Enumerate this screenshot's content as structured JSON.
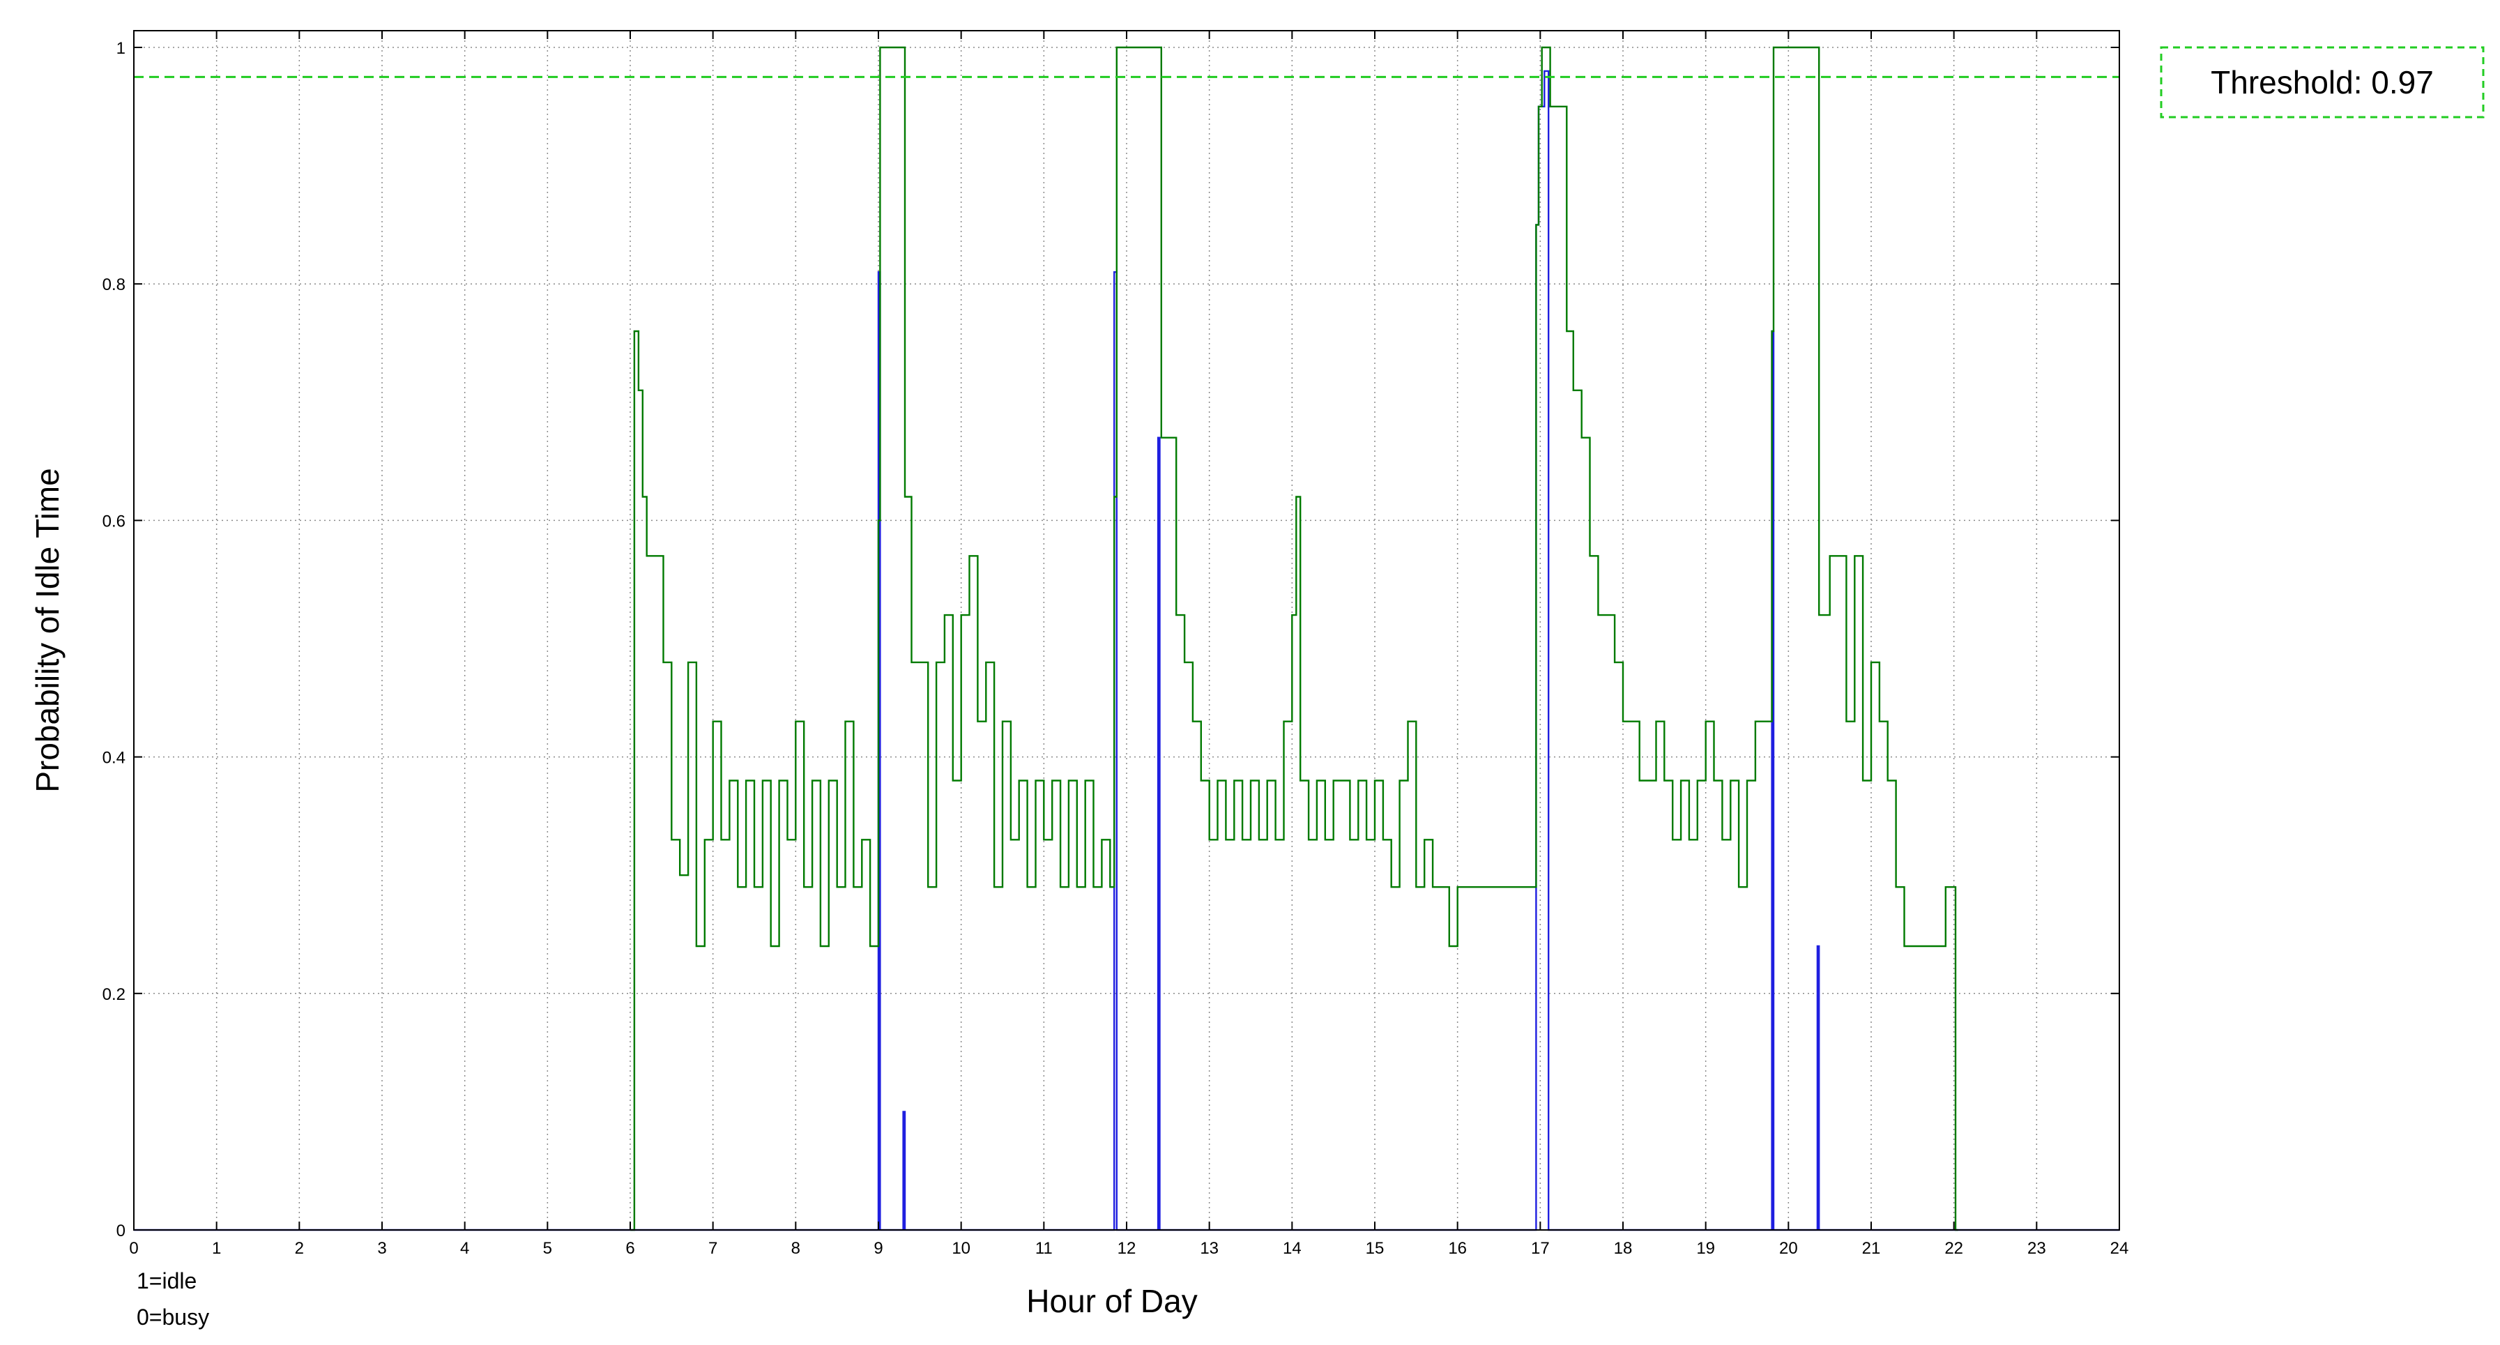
{
  "chart_data": {
    "type": "line",
    "title": "",
    "xlabel": "Hour of Day",
    "ylabel": "Probability of Idle Time",
    "xlim": [
      0,
      24
    ],
    "ylim": [
      0,
      1
    ],
    "x_ticks": [
      "0",
      "1",
      "2",
      "3",
      "4",
      "5",
      "6",
      "7",
      "8",
      "9",
      "10",
      "11",
      "12",
      "13",
      "14",
      "15",
      "16",
      "17",
      "18",
      "19",
      "20",
      "21",
      "22",
      "23",
      "24"
    ],
    "y_ticks": [
      "0",
      "0.2",
      "0.4",
      "0.6",
      "0.8",
      "1"
    ],
    "grid": true,
    "notes": [
      "1=idle",
      "0=busy"
    ],
    "threshold": {
      "label": "Threshold: 0.97",
      "value": 0.975,
      "color": "#22cc22"
    },
    "series": [
      {
        "color": "#1f1fe0",
        "style": "step",
        "points": [
          [
            0,
            0
          ],
          [
            6,
            0
          ],
          [
            9.0,
            0
          ],
          [
            9.0,
            0.81
          ],
          [
            9.02,
            0.81
          ],
          [
            9.02,
            0
          ],
          [
            9.3,
            0
          ],
          [
            9.3,
            0.1
          ],
          [
            9.32,
            0.1
          ],
          [
            9.32,
            0
          ],
          [
            11.85,
            0
          ],
          [
            11.85,
            0.81
          ],
          [
            11.88,
            0.81
          ],
          [
            11.88,
            0
          ],
          [
            12.38,
            0
          ],
          [
            12.38,
            0.67
          ],
          [
            12.4,
            0.67
          ],
          [
            12.4,
            0
          ],
          [
            16.95,
            0
          ],
          [
            16.95,
            0.85
          ],
          [
            16.98,
            0.85
          ],
          [
            16.98,
            0.95
          ],
          [
            17.05,
            0.95
          ],
          [
            17.05,
            0.98
          ],
          [
            17.1,
            0.98
          ],
          [
            17.1,
            0
          ],
          [
            19.8,
            0
          ],
          [
            19.8,
            0.76
          ],
          [
            19.82,
            0.76
          ],
          [
            19.82,
            0
          ],
          [
            20.35,
            0
          ],
          [
            20.35,
            0.24
          ],
          [
            20.37,
            0.24
          ],
          [
            20.37,
            0
          ],
          [
            24,
            0
          ]
        ]
      },
      {
        "color": "#007a00",
        "style": "step",
        "points": [
          [
            6.0,
            0
          ],
          [
            6.05,
            0.76
          ],
          [
            6.1,
            0.71
          ],
          [
            6.15,
            0.62
          ],
          [
            6.2,
            0.57
          ],
          [
            6.3,
            0.57
          ],
          [
            6.4,
            0.48
          ],
          [
            6.5,
            0.33
          ],
          [
            6.6,
            0.3
          ],
          [
            6.7,
            0.48
          ],
          [
            6.8,
            0.24
          ],
          [
            6.9,
            0.33
          ],
          [
            7.0,
            0.43
          ],
          [
            7.1,
            0.33
          ],
          [
            7.2,
            0.38
          ],
          [
            7.3,
            0.29
          ],
          [
            7.4,
            0.38
          ],
          [
            7.5,
            0.29
          ],
          [
            7.6,
            0.38
          ],
          [
            7.7,
            0.24
          ],
          [
            7.8,
            0.38
          ],
          [
            7.9,
            0.33
          ],
          [
            8.0,
            0.43
          ],
          [
            8.1,
            0.29
          ],
          [
            8.2,
            0.38
          ],
          [
            8.3,
            0.24
          ],
          [
            8.4,
            0.38
          ],
          [
            8.5,
            0.29
          ],
          [
            8.6,
            0.43
          ],
          [
            8.7,
            0.29
          ],
          [
            8.8,
            0.33
          ],
          [
            8.9,
            0.24
          ],
          [
            9.0,
            0.6
          ],
          [
            9.02,
            1.0
          ],
          [
            9.3,
            1.0
          ],
          [
            9.32,
            0.62
          ],
          [
            9.4,
            0.48
          ],
          [
            9.5,
            0.48
          ],
          [
            9.6,
            0.29
          ],
          [
            9.7,
            0.48
          ],
          [
            9.8,
            0.52
          ],
          [
            9.9,
            0.38
          ],
          [
            10.0,
            0.52
          ],
          [
            10.1,
            0.57
          ],
          [
            10.2,
            0.43
          ],
          [
            10.3,
            0.48
          ],
          [
            10.4,
            0.29
          ],
          [
            10.5,
            0.43
          ],
          [
            10.6,
            0.33
          ],
          [
            10.7,
            0.38
          ],
          [
            10.8,
            0.29
          ],
          [
            10.9,
            0.38
          ],
          [
            11.0,
            0.33
          ],
          [
            11.1,
            0.38
          ],
          [
            11.2,
            0.29
          ],
          [
            11.3,
            0.38
          ],
          [
            11.4,
            0.29
          ],
          [
            11.5,
            0.38
          ],
          [
            11.6,
            0.29
          ],
          [
            11.7,
            0.33
          ],
          [
            11.8,
            0.29
          ],
          [
            11.85,
            0.62
          ],
          [
            11.88,
            1.0
          ],
          [
            12.4,
            1.0
          ],
          [
            12.42,
            0.67
          ],
          [
            12.5,
            0.67
          ],
          [
            12.6,
            0.52
          ],
          [
            12.7,
            0.48
          ],
          [
            12.8,
            0.43
          ],
          [
            12.9,
            0.38
          ],
          [
            13.0,
            0.33
          ],
          [
            13.1,
            0.38
          ],
          [
            13.2,
            0.33
          ],
          [
            13.3,
            0.38
          ],
          [
            13.4,
            0.33
          ],
          [
            13.5,
            0.38
          ],
          [
            13.6,
            0.33
          ],
          [
            13.7,
            0.38
          ],
          [
            13.8,
            0.33
          ],
          [
            13.9,
            0.43
          ],
          [
            14.0,
            0.52
          ],
          [
            14.05,
            0.62
          ],
          [
            14.1,
            0.38
          ],
          [
            14.2,
            0.33
          ],
          [
            14.3,
            0.38
          ],
          [
            14.4,
            0.33
          ],
          [
            14.5,
            0.38
          ],
          [
            14.6,
            0.38
          ],
          [
            14.7,
            0.33
          ],
          [
            14.8,
            0.38
          ],
          [
            14.9,
            0.33
          ],
          [
            15.0,
            0.38
          ],
          [
            15.1,
            0.33
          ],
          [
            15.2,
            0.29
          ],
          [
            15.3,
            0.38
          ],
          [
            15.4,
            0.43
          ],
          [
            15.5,
            0.29
          ],
          [
            15.6,
            0.33
          ],
          [
            15.7,
            0.29
          ],
          [
            15.8,
            0.29
          ],
          [
            15.9,
            0.24
          ],
          [
            16.0,
            0.29
          ],
          [
            16.1,
            0.29
          ],
          [
            16.2,
            0.29
          ],
          [
            16.3,
            0.29
          ],
          [
            16.4,
            0.29
          ],
          [
            16.5,
            0.29
          ],
          [
            16.6,
            0.29
          ],
          [
            16.7,
            0.29
          ],
          [
            16.8,
            0.29
          ],
          [
            16.9,
            0.29
          ],
          [
            16.95,
            0.85
          ],
          [
            16.98,
            0.95
          ],
          [
            17.02,
            1.0
          ],
          [
            17.1,
            1.0
          ],
          [
            17.12,
            0.95
          ],
          [
            17.3,
            0.95
          ],
          [
            17.32,
            0.76
          ],
          [
            17.4,
            0.71
          ],
          [
            17.5,
            0.67
          ],
          [
            17.6,
            0.57
          ],
          [
            17.7,
            0.52
          ],
          [
            17.8,
            0.52
          ],
          [
            17.9,
            0.48
          ],
          [
            18.0,
            0.43
          ],
          [
            18.1,
            0.43
          ],
          [
            18.2,
            0.38
          ],
          [
            18.3,
            0.38
          ],
          [
            18.4,
            0.43
          ],
          [
            18.5,
            0.38
          ],
          [
            18.6,
            0.33
          ],
          [
            18.7,
            0.38
          ],
          [
            18.8,
            0.33
          ],
          [
            18.9,
            0.38
          ],
          [
            19.0,
            0.43
          ],
          [
            19.1,
            0.38
          ],
          [
            19.2,
            0.33
          ],
          [
            19.3,
            0.38
          ],
          [
            19.4,
            0.29
          ],
          [
            19.5,
            0.38
          ],
          [
            19.6,
            0.43
          ],
          [
            19.7,
            0.43
          ],
          [
            19.8,
            0.76
          ],
          [
            19.82,
            1.0
          ],
          [
            20.35,
            1.0
          ],
          [
            20.37,
            0.52
          ],
          [
            20.5,
            0.57
          ],
          [
            20.6,
            0.57
          ],
          [
            20.7,
            0.43
          ],
          [
            20.8,
            0.57
          ],
          [
            20.9,
            0.38
          ],
          [
            21.0,
            0.48
          ],
          [
            21.1,
            0.43
          ],
          [
            21.2,
            0.38
          ],
          [
            21.3,
            0.29
          ],
          [
            21.4,
            0.24
          ],
          [
            21.5,
            0.24
          ],
          [
            21.6,
            0.24
          ],
          [
            21.7,
            0.24
          ],
          [
            21.8,
            0.24
          ],
          [
            21.9,
            0.29
          ],
          [
            22.0,
            0.29
          ],
          [
            22.02,
            0
          ],
          [
            22.05,
            0
          ]
        ]
      }
    ]
  }
}
